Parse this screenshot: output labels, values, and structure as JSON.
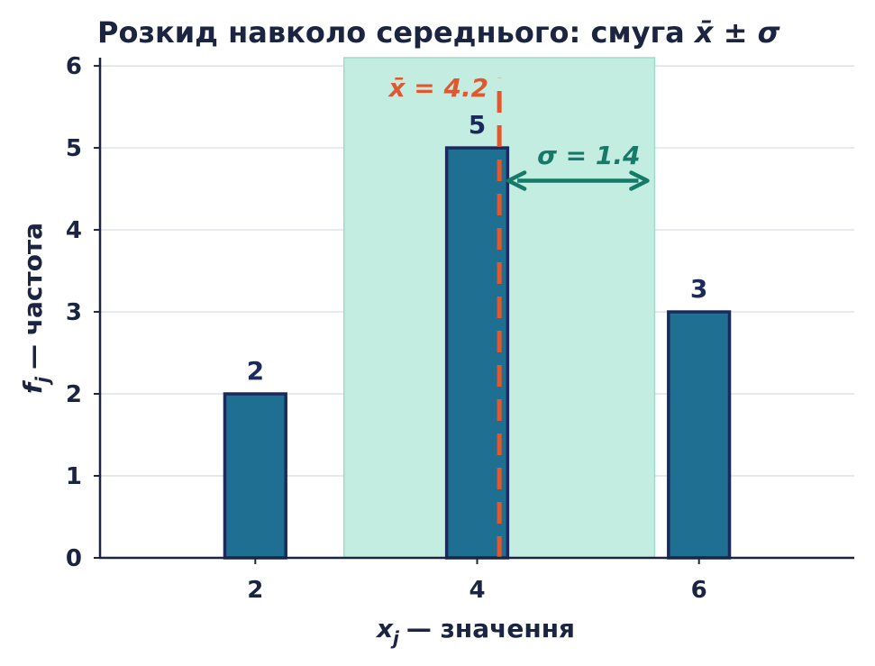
{
  "chart_data": {
    "type": "bar",
    "title": "Розкид навколо середнього: смуга x̄ ± σ",
    "title_main": "Розкид навколо середнього: смуга ",
    "title_math": "x̄ ± σ",
    "xlabel": "— значення",
    "xlabel_var": "x",
    "xlabel_sub": "j",
    "ylabel": "— частота",
    "ylabel_var": "f",
    "ylabel_sub": "j",
    "x": [
      2,
      4,
      6
    ],
    "values": [
      2,
      5,
      3
    ],
    "data_labels": [
      "2",
      "5",
      "3"
    ],
    "xticks": [
      "2",
      "4",
      "6"
    ],
    "yticks": [
      "0",
      "1",
      "2",
      "3",
      "4",
      "5",
      "6"
    ],
    "xlim": [
      0.6,
      7.4
    ],
    "ylim": [
      0,
      6.1
    ],
    "bar_width": 0.55,
    "mean": 4.2,
    "std": 1.4,
    "mean_label": "x̄ = 4.2",
    "std_label": "σ = 1.4",
    "grid": "horizontal",
    "colors": {
      "bar_fill": "#1f6f92",
      "bar_edge": "#1b2a5c",
      "band": "#c3ede0",
      "band_edge": "#9fdcc8",
      "mean_line": "#e2582e",
      "std_arrow": "#167a68",
      "grid": "#d5d9e3",
      "axis": "#1b2440"
    }
  }
}
